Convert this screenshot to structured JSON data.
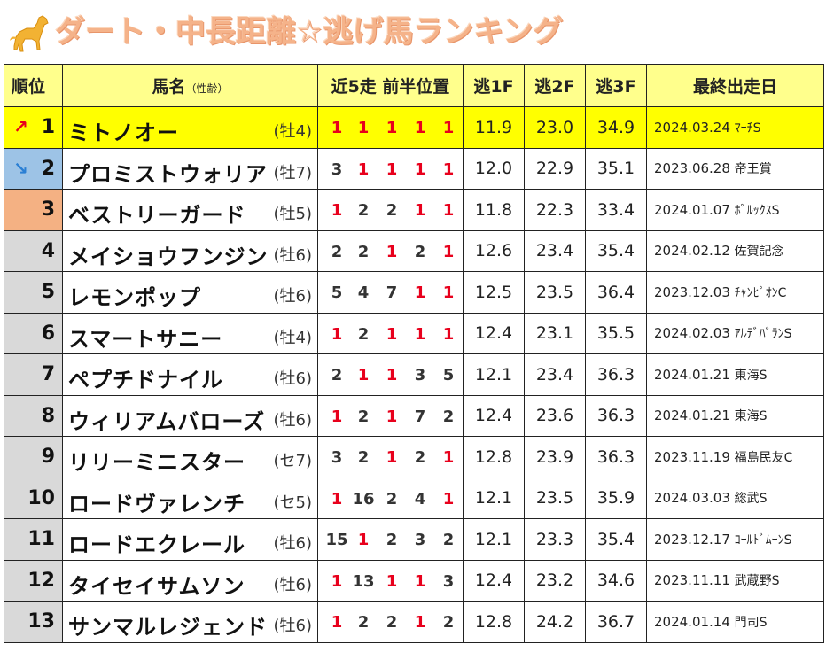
{
  "title": "ダート・中長距離☆逃げ馬ランキング",
  "colors": {
    "title": "#f5b38a",
    "header_bg": "#ffff8c",
    "highlight": "#ffff00",
    "red": "#e8001c",
    "rank_up": "#e8001c",
    "rank_down": "#2a7fd4",
    "rank2_bg": "#9dc3e6",
    "rank3_bg": "#f4b183",
    "rank_bg": "#d9d9d9"
  },
  "header": {
    "rank": "順位",
    "name": "馬名",
    "name_sub": "（性齢）",
    "positions": "近5走 前半位置",
    "f1": "逃1F",
    "f2": "逃2F",
    "f3": "逃3F",
    "last": "最終出走日"
  },
  "rows": [
    {
      "rank": "1",
      "arrow": "↗",
      "name": "ミトノオー",
      "sexage": "(牡4)",
      "pos": [
        "1",
        "1",
        "1",
        "1",
        "1"
      ],
      "f1": "11.9",
      "f2": "23.0",
      "f3": "34.9",
      "date": "2024.03.24",
      "race": "ﾏｰﾁS"
    },
    {
      "rank": "2",
      "arrow": "↘",
      "name": "プロミストウォリア",
      "sexage": "(牡7)",
      "pos": [
        "3",
        "1",
        "1",
        "1",
        "1"
      ],
      "f1": "12.0",
      "f2": "22.9",
      "f3": "35.1",
      "date": "2023.06.28",
      "race": "帝王賞"
    },
    {
      "rank": "3",
      "arrow": "",
      "name": "ベストリーガード",
      "sexage": "(牡5)",
      "pos": [
        "1",
        "2",
        "2",
        "1",
        "1"
      ],
      "f1": "11.8",
      "f2": "22.3",
      "f3": "33.4",
      "date": "2024.01.07",
      "race": "ﾎﾟﾙｯｸｽS"
    },
    {
      "rank": "4",
      "arrow": "",
      "name": "メイショウフンジン",
      "sexage": "(牡6)",
      "pos": [
        "2",
        "2",
        "1",
        "2",
        "1"
      ],
      "f1": "12.6",
      "f2": "23.4",
      "f3": "35.4",
      "date": "2024.02.12",
      "race": "佐賀記念"
    },
    {
      "rank": "5",
      "arrow": "",
      "name": "レモンポップ",
      "sexage": "(牡6)",
      "pos": [
        "5",
        "4",
        "7",
        "1",
        "1"
      ],
      "f1": "12.5",
      "f2": "23.5",
      "f3": "36.4",
      "date": "2023.12.03",
      "race": "ﾁｬﾝﾋﾟｵﾝC"
    },
    {
      "rank": "6",
      "arrow": "",
      "name": "スマートサニー",
      "sexage": "(牡4)",
      "pos": [
        "1",
        "2",
        "1",
        "1",
        "1"
      ],
      "f1": "12.4",
      "f2": "23.1",
      "f3": "35.5",
      "date": "2024.02.03",
      "race": "ｱﾙﾃﾞﾊﾞﾗﾝS"
    },
    {
      "rank": "7",
      "arrow": "",
      "name": "ペプチドナイル",
      "sexage": "(牡6)",
      "pos": [
        "2",
        "1",
        "1",
        "3",
        "5"
      ],
      "f1": "12.1",
      "f2": "23.4",
      "f3": "36.3",
      "date": "2024.01.21",
      "race": "東海S"
    },
    {
      "rank": "8",
      "arrow": "",
      "name": "ウィリアムバローズ",
      "sexage": "(牡6)",
      "pos": [
        "1",
        "2",
        "1",
        "7",
        "2"
      ],
      "f1": "12.4",
      "f2": "23.6",
      "f3": "36.3",
      "date": "2024.01.21",
      "race": "東海S"
    },
    {
      "rank": "9",
      "arrow": "",
      "name": "リリーミニスター",
      "sexage": "(セ7)",
      "pos": [
        "3",
        "2",
        "1",
        "2",
        "1"
      ],
      "f1": "12.8",
      "f2": "23.9",
      "f3": "36.3",
      "date": "2023.11.19",
      "race": "福島民友C"
    },
    {
      "rank": "10",
      "arrow": "",
      "name": "ロードヴァレンチ",
      "sexage": "(セ5)",
      "pos": [
        "1",
        "16",
        "2",
        "4",
        "1"
      ],
      "f1": "12.1",
      "f2": "23.5",
      "f3": "35.9",
      "date": "2024.03.03",
      "race": "総武S"
    },
    {
      "rank": "11",
      "arrow": "",
      "name": "ロードエクレール",
      "sexage": "(牡6)",
      "pos": [
        "15",
        "1",
        "2",
        "3",
        "2"
      ],
      "f1": "12.1",
      "f2": "23.3",
      "f3": "35.4",
      "date": "2023.12.17",
      "race": "ｺｰﾙﾄﾞﾑｰﾝS"
    },
    {
      "rank": "12",
      "arrow": "",
      "name": "タイセイサムソン",
      "sexage": "(牡6)",
      "pos": [
        "1",
        "13",
        "1",
        "1",
        "3"
      ],
      "f1": "12.4",
      "f2": "23.2",
      "f3": "34.6",
      "date": "2023.11.11",
      "race": "武蔵野S"
    },
    {
      "rank": "13",
      "arrow": "",
      "name": "サンマルレジェンド",
      "sexage": "(牡6)",
      "pos": [
        "1",
        "2",
        "2",
        "1",
        "2"
      ],
      "f1": "12.8",
      "f2": "24.2",
      "f3": "36.7",
      "date": "2024.01.14",
      "race": "門司S"
    }
  ]
}
